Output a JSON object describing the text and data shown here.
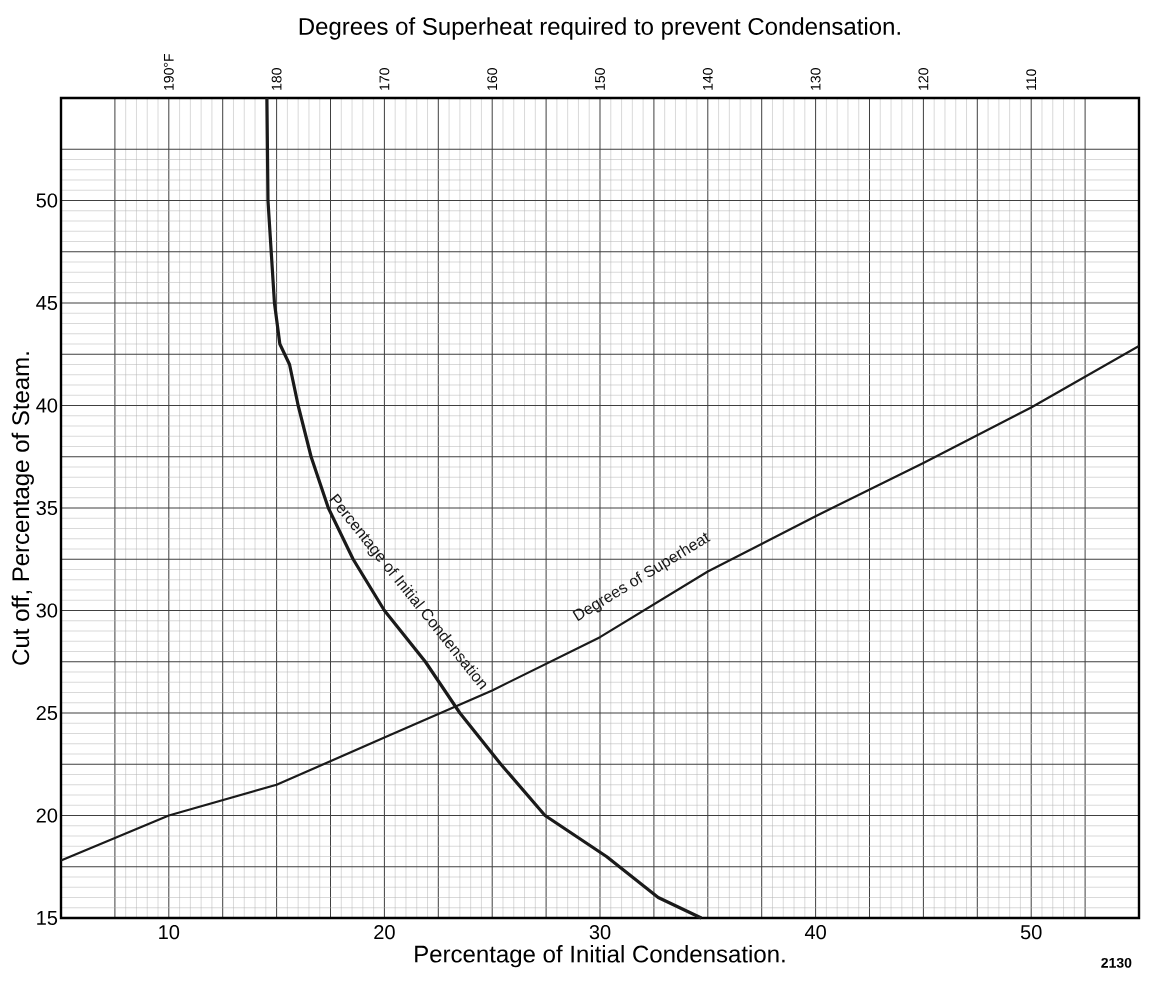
{
  "chart_data": {
    "type": "line",
    "xlabel": "Percentage of Initial Condensation.",
    "ylabel": "Cut off, Percentage of Steam.",
    "x2label": "Degrees of Superheat required to prevent Condensation.",
    "xlim": [
      5,
      55
    ],
    "ylim": [
      15,
      55
    ],
    "x2lim": [
      200,
      100
    ],
    "xticks": [
      {
        "value": 7.5,
        "label": null
      },
      10,
      {
        "value": 12.5,
        "label": null
      },
      {
        "value": 15,
        "label": null
      },
      {
        "value": 17.5,
        "label": null
      },
      20,
      {
        "value": 22.5,
        "label": null
      },
      {
        "value": 25,
        "label": null
      },
      {
        "value": 27.5,
        "label": null
      },
      30,
      {
        "value": 32.5,
        "label": null
      },
      {
        "value": 35,
        "label": null
      },
      {
        "value": 37.5,
        "label": null
      },
      40,
      {
        "value": 42.5,
        "label": null
      },
      {
        "value": 45,
        "label": null
      },
      {
        "value": 47.5,
        "label": null
      },
      50,
      {
        "value": 52.5,
        "label": null
      }
    ],
    "yticks": [
      15,
      {
        "value": 17.5,
        "label": null
      },
      20,
      {
        "value": 22.5,
        "label": null
      },
      25,
      {
        "value": 27.5,
        "label": null
      },
      30,
      {
        "value": 32.5,
        "label": null
      },
      35,
      {
        "value": 37.5,
        "label": null
      },
      40,
      {
        "value": 42.5,
        "label": null
      },
      45,
      {
        "value": 47.5,
        "label": null
      },
      50,
      {
        "value": 52.5,
        "label": null
      }
    ],
    "x2ticks": [
      {
        "value": 190,
        "label": "190°F"
      },
      180,
      170,
      160,
      150,
      140,
      130,
      120,
      110
    ],
    "grid": true,
    "series": [
      {
        "name": "Percentage of Initial Condensation",
        "color": "#1a1a1a",
        "x": [
          14.55,
          14.6,
          14.9,
          15.15,
          15.6,
          16.0,
          16.6,
          17.4,
          18.55,
          20.0,
          21.9,
          23.5,
          25.4,
          27.45,
          30.3,
          32.7,
          34.7
        ],
        "values": [
          55,
          50,
          45,
          43,
          42,
          40,
          37.5,
          35,
          32.5,
          30,
          27.5,
          25,
          22.5,
          20,
          18,
          16,
          15
        ]
      },
      {
        "name": "Degrees of Superheat",
        "color": "#1a1a1a",
        "axis": "x2",
        "x": [
          200,
          190,
          180,
          170,
          160,
          150,
          140,
          130,
          120,
          110,
          100
        ],
        "values": [
          17.8,
          20.0,
          21.5,
          23.8,
          26.1,
          28.7,
          31.9,
          34.6,
          37.2,
          39.9,
          42.9
        ]
      }
    ],
    "annotations": [
      "2130"
    ]
  }
}
